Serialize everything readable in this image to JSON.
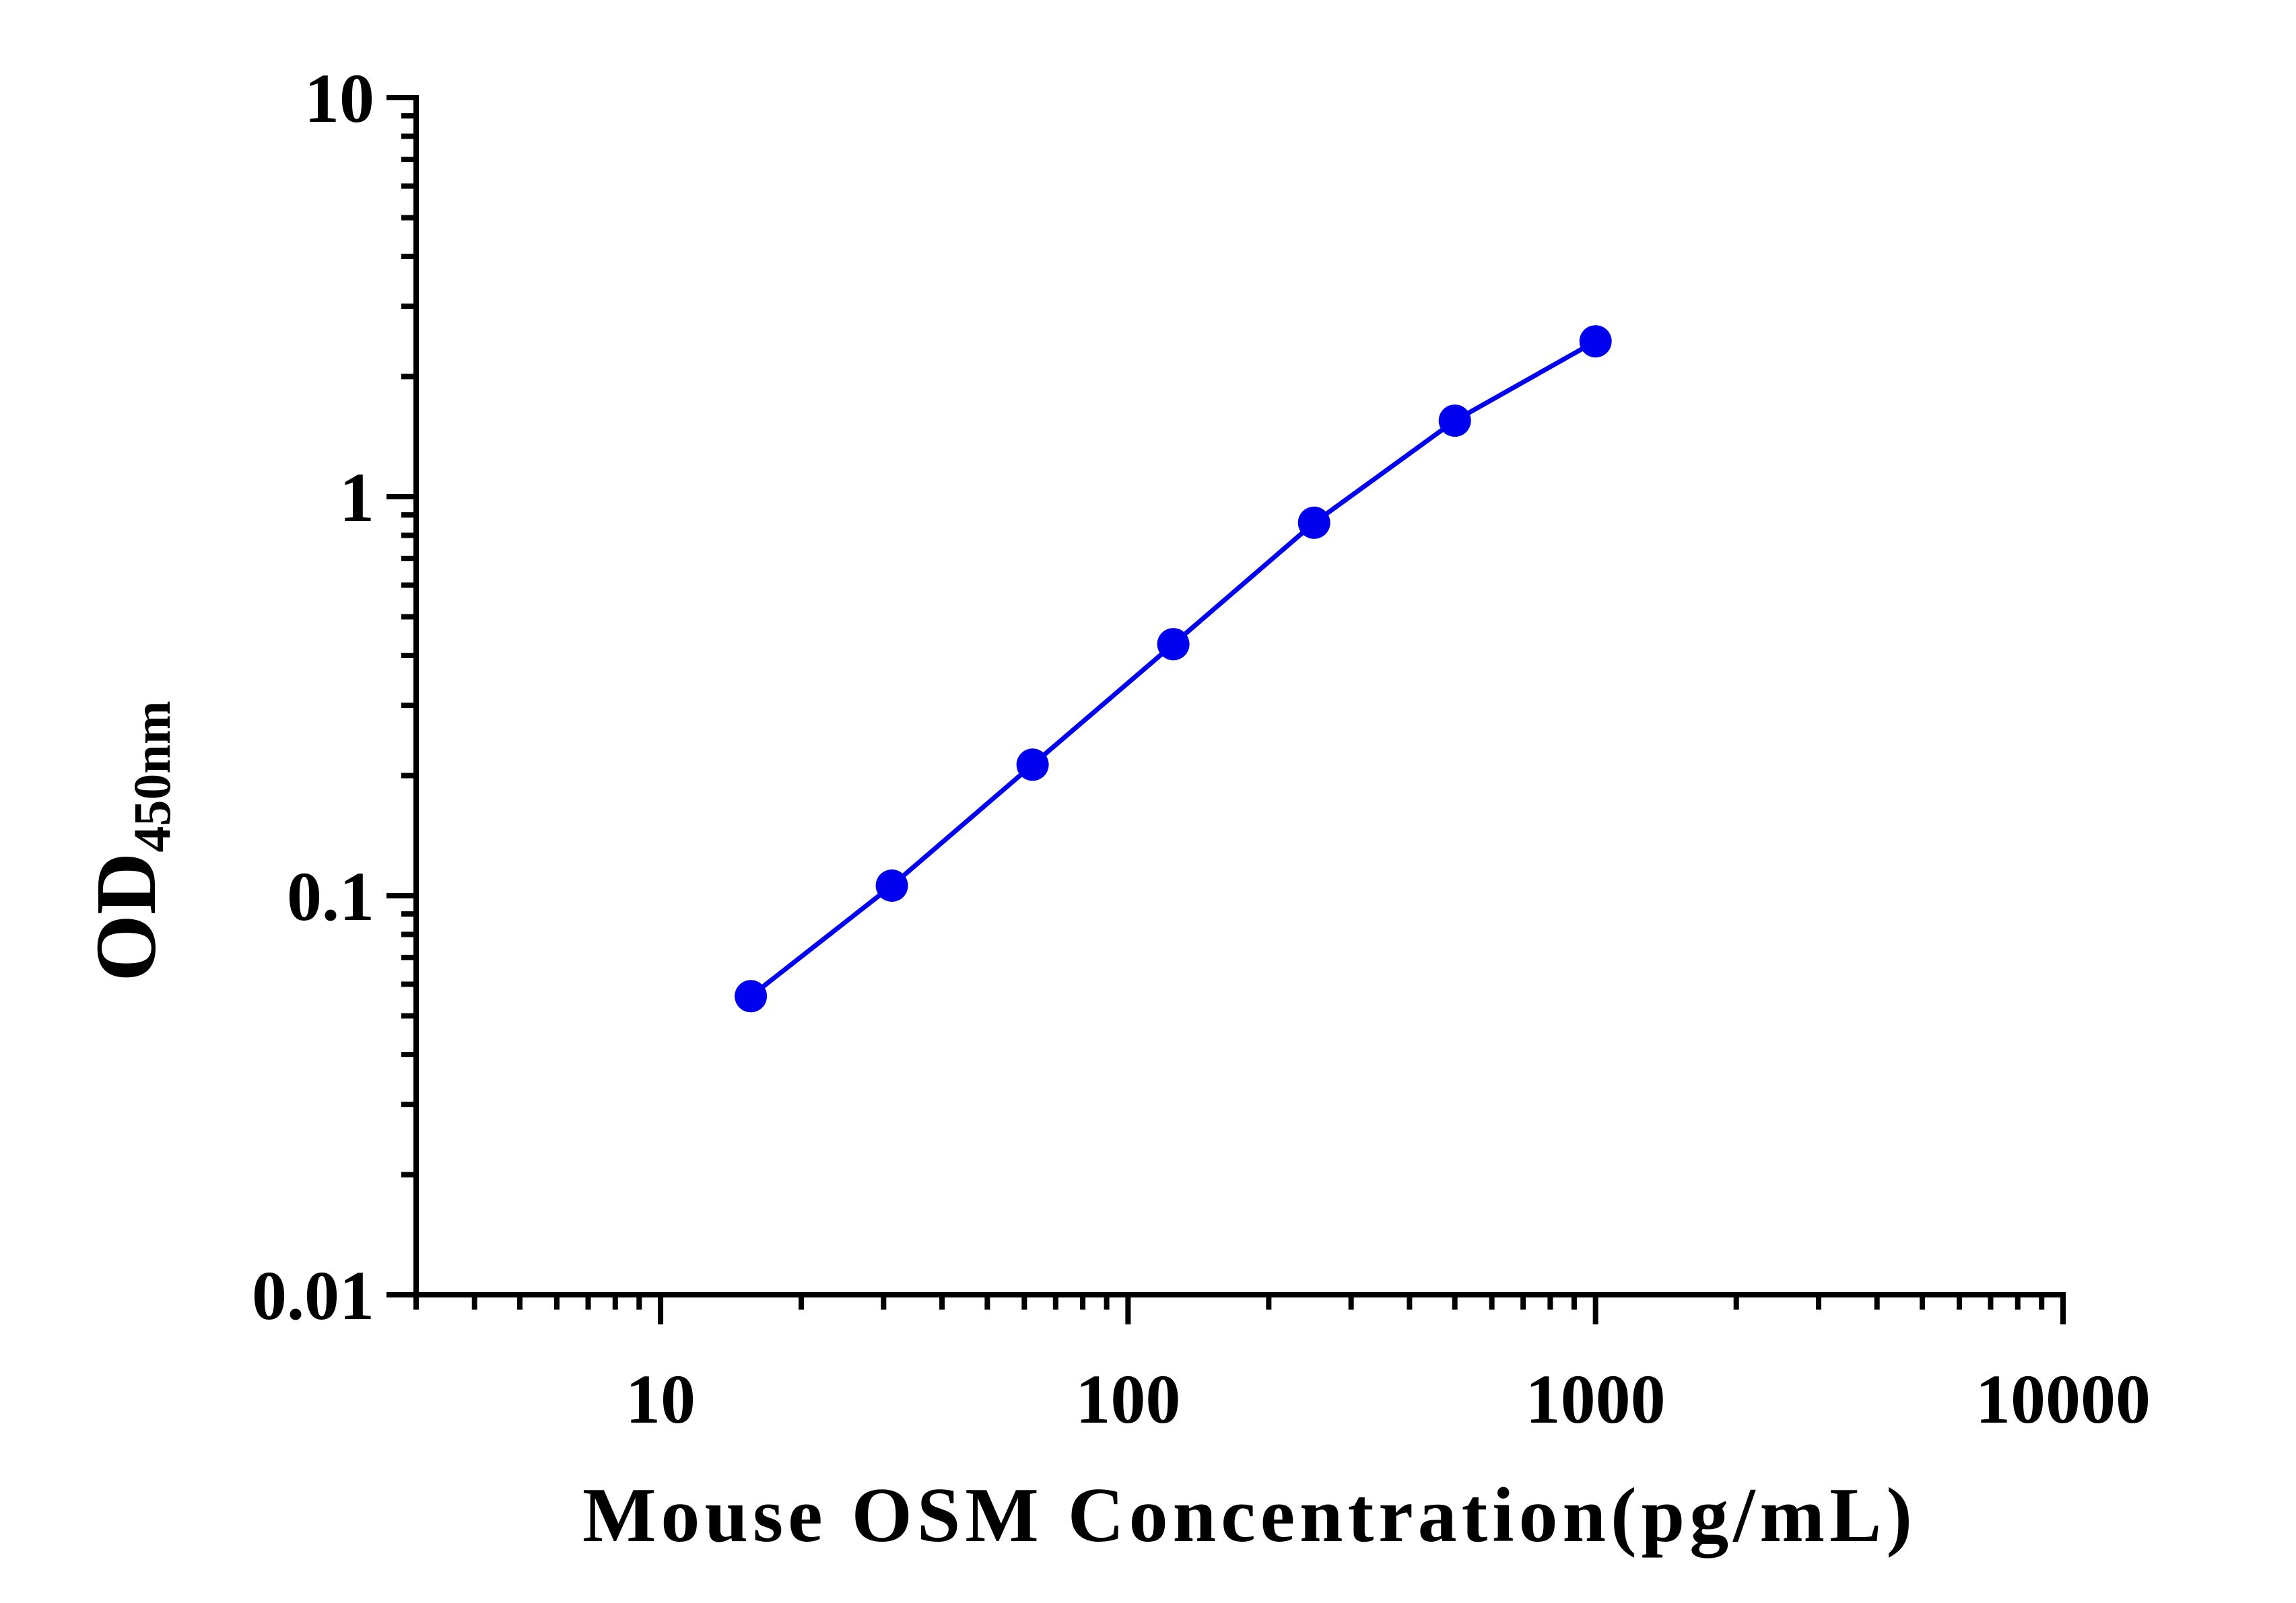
{
  "chart_data": {
    "type": "line",
    "xlabel": "Mouse OSM Concentration(pg/mL)",
    "ylabel_main": "OD",
    "ylabel_sub": "450nm",
    "x_scale": "log",
    "y_scale": "log",
    "xlim": [
      3,
      10000
    ],
    "ylim": [
      0.01,
      10
    ],
    "x_ticks": [
      {
        "value": 10,
        "label": "10"
      },
      {
        "value": 100,
        "label": "100"
      },
      {
        "value": 1000,
        "label": "1000"
      },
      {
        "value": 10000,
        "label": "10000"
      }
    ],
    "y_ticks": [
      {
        "value": 0.01,
        "label": "0.01"
      },
      {
        "value": 0.1,
        "label": "0.1"
      },
      {
        "value": 1,
        "label": "1"
      },
      {
        "value": 10,
        "label": "10"
      }
    ],
    "grid": false,
    "series": [
      {
        "color": "#0000ee",
        "marker": "circle",
        "x": [
          15.6,
          31.25,
          62.5,
          125,
          250,
          500,
          1000
        ],
        "y": [
          0.056,
          0.106,
          0.213,
          0.427,
          0.86,
          1.55,
          2.45
        ]
      }
    ]
  }
}
